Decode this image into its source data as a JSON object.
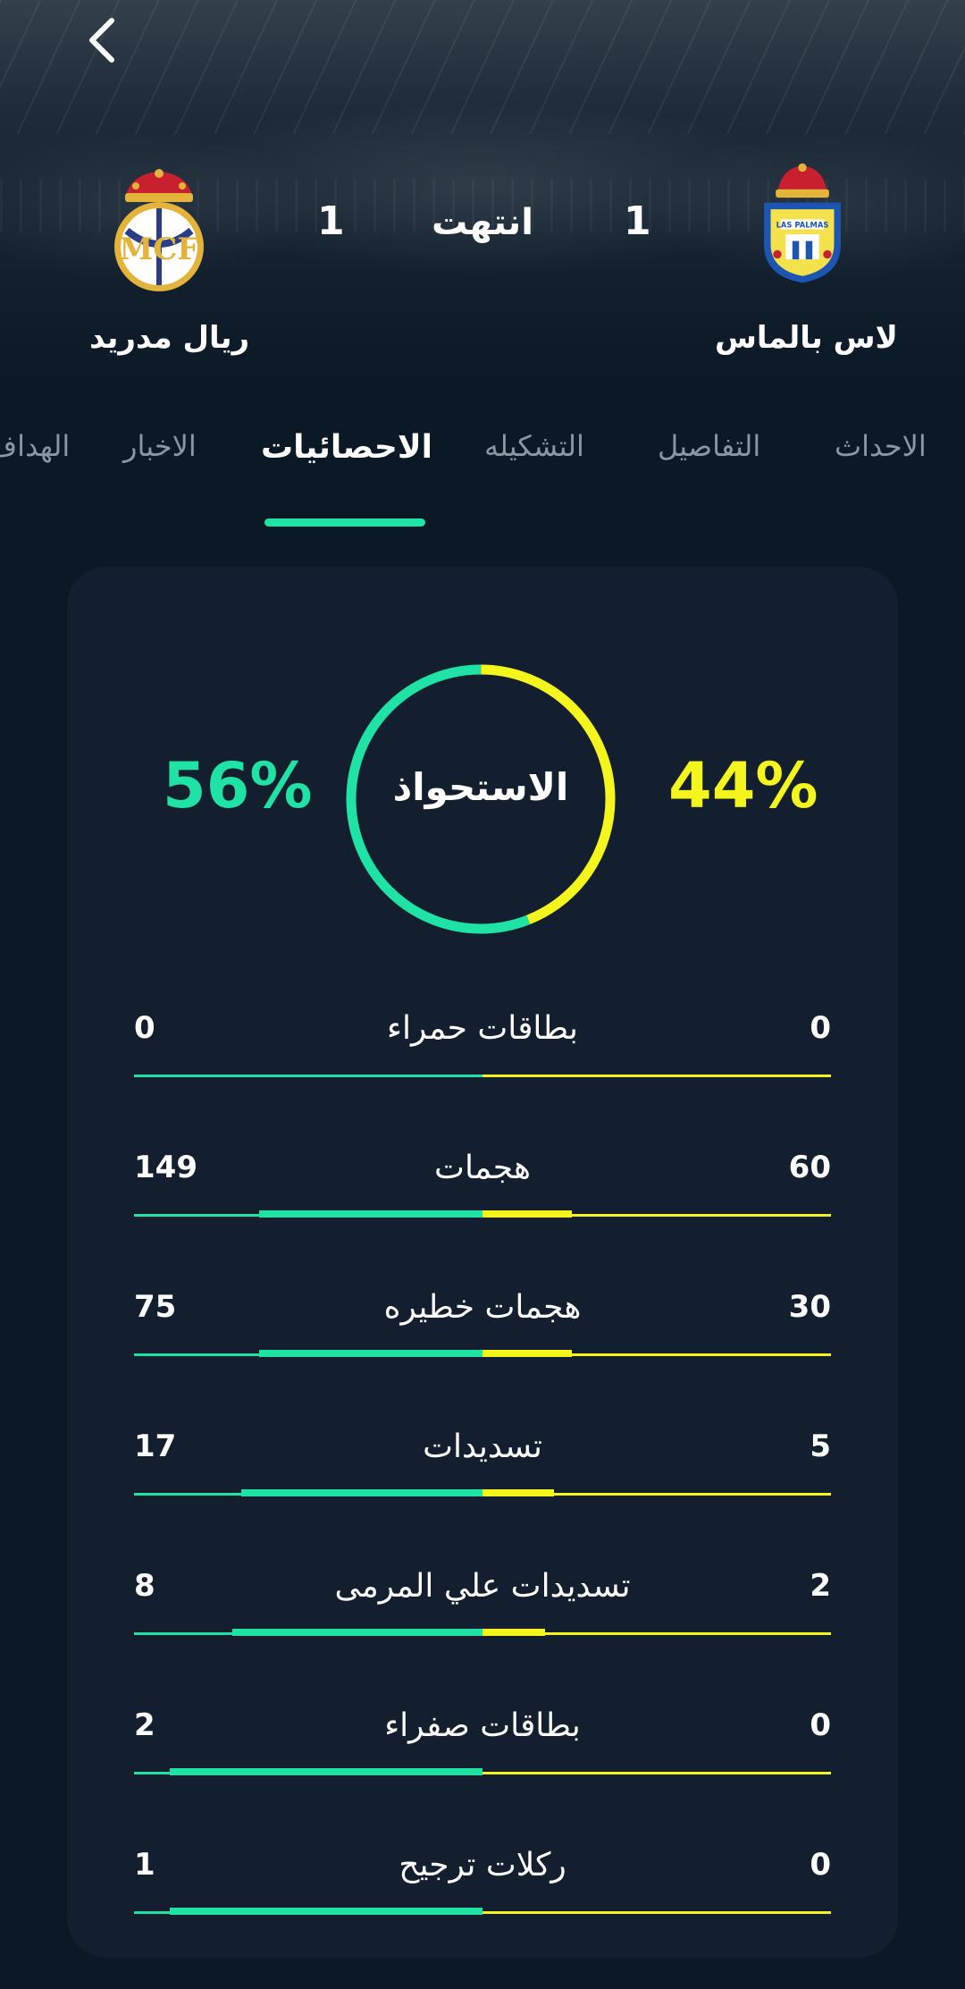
{
  "header": {
    "home_team": "ريال مدريد",
    "away_team": "لاس بالماس",
    "home_score": "1",
    "away_score": "1",
    "status": "انتهت"
  },
  "tabs": [
    {
      "label": "الاحداث",
      "active": false
    },
    {
      "label": "التفاصيل",
      "active": false
    },
    {
      "label": "التشكيله",
      "active": false
    },
    {
      "label": "الاحصائيات",
      "active": true
    },
    {
      "label": "الاخبار",
      "active": false
    },
    {
      "label": "الهداف",
      "active": false
    }
  ],
  "possession": {
    "label": "الاستحواذ",
    "home_pct": "56%",
    "away_pct": "44%",
    "home_value": 56,
    "away_value": 44
  },
  "stats": [
    {
      "label": "بطاقات حمراء",
      "home": "0",
      "away": "0",
      "home_value": 0,
      "away_value": 0
    },
    {
      "label": "هجمات",
      "home": "149",
      "away": "60",
      "home_value": 149,
      "away_value": 60
    },
    {
      "label": "هجمات خطيره",
      "home": "75",
      "away": "30",
      "home_value": 75,
      "away_value": 30
    },
    {
      "label": "تسديدات",
      "home": "17",
      "away": "5",
      "home_value": 17,
      "away_value": 5
    },
    {
      "label": "تسديدات علي المرمى",
      "home": "8",
      "away": "2",
      "home_value": 8,
      "away_value": 2
    },
    {
      "label": "بطاقات صفراء",
      "home": "2",
      "away": "0",
      "home_value": 2,
      "away_value": 0
    },
    {
      "label": "ركلات ترجيح",
      "home": "1",
      "away": "0",
      "home_value": 1,
      "away_value": 0
    }
  ],
  "colors": {
    "home": "#1ee3a4",
    "away": "#f4f51c",
    "background": "#0b1826",
    "card": "#131f2f"
  },
  "icons": {
    "back": "chevron-left-icon",
    "home_crest": "real-madrid-crest-icon",
    "away_crest": "las-palmas-crest-icon"
  }
}
